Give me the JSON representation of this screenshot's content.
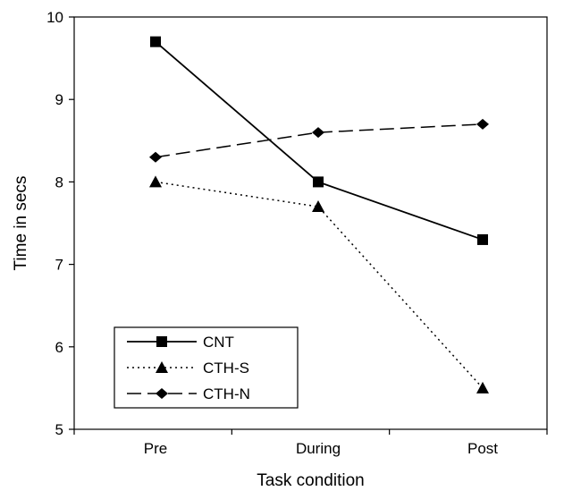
{
  "chart_data": {
    "type": "line",
    "categories": [
      "Pre",
      "During",
      "Post"
    ],
    "series": [
      {
        "name": "CNT",
        "values": [
          9.7,
          8.0,
          7.3
        ],
        "marker": "square",
        "dash": "solid"
      },
      {
        "name": "CTH-S",
        "values": [
          8.0,
          7.7,
          5.5
        ],
        "marker": "triangle",
        "dash": "dotted"
      },
      {
        "name": "CTH-N",
        "values": [
          8.3,
          8.6,
          8.7
        ],
        "marker": "diamond",
        "dash": "dashed"
      }
    ],
    "title": "",
    "xlabel": "Task condition",
    "ylabel": "Time in secs",
    "ylim": [
      5,
      10
    ],
    "yticks": [
      "5",
      "6",
      "7",
      "8",
      "9",
      "10"
    ],
    "grid": false,
    "legend_position": "bottom-left",
    "line_color": "#000000"
  }
}
